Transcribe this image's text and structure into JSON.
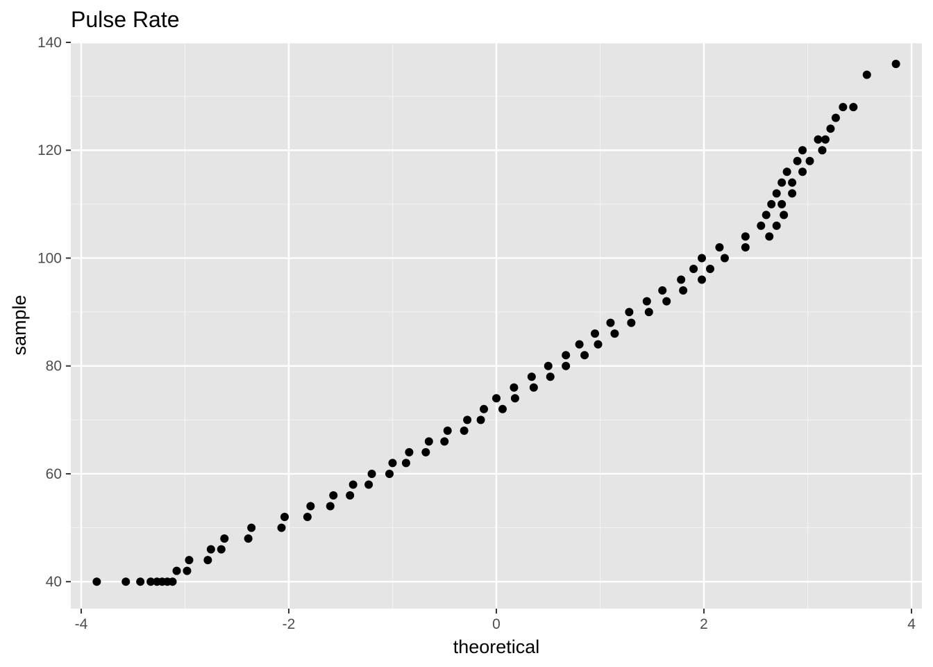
{
  "chart_data": {
    "type": "scatter",
    "title": "Pulse Rate",
    "xlabel": "theoretical",
    "ylabel": "sample",
    "xlim": [
      -4.1,
      4.1
    ],
    "ylim": [
      35,
      140
    ],
    "x_ticks": [
      -4,
      -2,
      0,
      2,
      4
    ],
    "x_tick_labels": [
      "-4",
      "-2",
      "0",
      "2",
      "4"
    ],
    "y_ticks": [
      40,
      60,
      80,
      100,
      120,
      140
    ],
    "y_tick_labels": [
      "40",
      "60",
      "80",
      "100",
      "120",
      "140"
    ],
    "x_minor_ticks": [
      -3,
      -1,
      1,
      3
    ],
    "y_minor_ticks": [
      50,
      70,
      90,
      110,
      130
    ],
    "grid": true,
    "panel_color": "#e5e5e5",
    "point_color": "#000000",
    "points": [
      [
        -3.85,
        40
      ],
      [
        -3.57,
        40
      ],
      [
        -3.43,
        40
      ],
      [
        -3.33,
        40
      ],
      [
        -3.27,
        40
      ],
      [
        -3.22,
        40
      ],
      [
        -3.17,
        40
      ],
      [
        -3.12,
        40
      ],
      [
        -3.08,
        42
      ],
      [
        -2.98,
        42
      ],
      [
        -2.96,
        44
      ],
      [
        -2.78,
        44
      ],
      [
        -2.75,
        46
      ],
      [
        -2.65,
        46
      ],
      [
        -2.62,
        48
      ],
      [
        -2.39,
        48
      ],
      [
        -2.36,
        50
      ],
      [
        -2.07,
        50
      ],
      [
        -2.04,
        52
      ],
      [
        -1.82,
        52
      ],
      [
        -1.79,
        54
      ],
      [
        -1.6,
        54
      ],
      [
        -1.57,
        56
      ],
      [
        -1.41,
        56
      ],
      [
        -1.38,
        58
      ],
      [
        -1.23,
        58
      ],
      [
        -1.2,
        60
      ],
      [
        -1.03,
        60
      ],
      [
        -1.0,
        62
      ],
      [
        -0.87,
        62
      ],
      [
        -0.84,
        64
      ],
      [
        -0.68,
        64
      ],
      [
        -0.65,
        66
      ],
      [
        -0.5,
        66
      ],
      [
        -0.47,
        68
      ],
      [
        -0.31,
        68
      ],
      [
        -0.28,
        70
      ],
      [
        -0.15,
        70
      ],
      [
        -0.12,
        72
      ],
      [
        0.06,
        72
      ],
      [
        0.0,
        74
      ],
      [
        0.18,
        74
      ],
      [
        0.17,
        76
      ],
      [
        0.36,
        76
      ],
      [
        0.34,
        78
      ],
      [
        0.52,
        78
      ],
      [
        0.5,
        80
      ],
      [
        0.67,
        80
      ],
      [
        0.67,
        82
      ],
      [
        0.85,
        82
      ],
      [
        0.8,
        84
      ],
      [
        0.98,
        84
      ],
      [
        0.95,
        86
      ],
      [
        1.14,
        86
      ],
      [
        1.1,
        88
      ],
      [
        1.3,
        88
      ],
      [
        1.28,
        90
      ],
      [
        1.47,
        90
      ],
      [
        1.45,
        92
      ],
      [
        1.64,
        92
      ],
      [
        1.6,
        94
      ],
      [
        1.8,
        94
      ],
      [
        1.78,
        96
      ],
      [
        1.98,
        96
      ],
      [
        1.9,
        98
      ],
      [
        2.06,
        98
      ],
      [
        1.98,
        100
      ],
      [
        2.2,
        100
      ],
      [
        2.15,
        102
      ],
      [
        2.4,
        102
      ],
      [
        2.4,
        104
      ],
      [
        2.63,
        104
      ],
      [
        2.55,
        106
      ],
      [
        2.7,
        106
      ],
      [
        2.6,
        108
      ],
      [
        2.77,
        108
      ],
      [
        2.65,
        110
      ],
      [
        2.75,
        110
      ],
      [
        2.7,
        112
      ],
      [
        2.85,
        112
      ],
      [
        2.75,
        114
      ],
      [
        2.85,
        114
      ],
      [
        2.8,
        116
      ],
      [
        2.95,
        116
      ],
      [
        2.9,
        118
      ],
      [
        3.02,
        118
      ],
      [
        2.95,
        120
      ],
      [
        3.14,
        120
      ],
      [
        3.1,
        122
      ],
      [
        3.17,
        122
      ],
      [
        3.22,
        124
      ],
      [
        3.27,
        126
      ],
      [
        3.34,
        128
      ],
      [
        3.44,
        128
      ],
      [
        3.57,
        134
      ],
      [
        3.85,
        136
      ]
    ]
  }
}
